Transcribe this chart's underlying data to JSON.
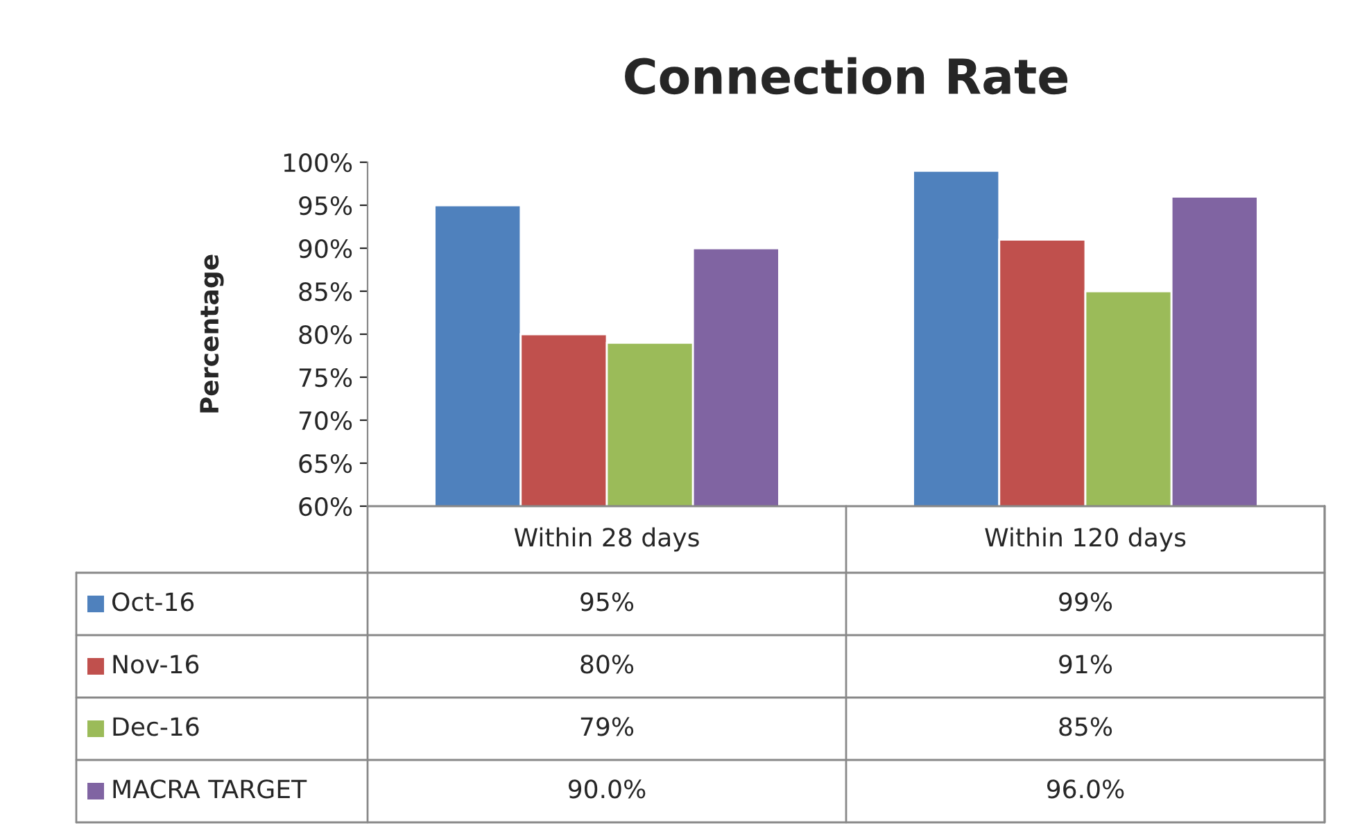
{
  "chart_data": {
    "type": "bar",
    "title": "Connection Rate",
    "ylabel": "Percentage",
    "categories": [
      "Within 28 days",
      "Within 120 days"
    ],
    "series": [
      {
        "name": "Oct-16",
        "color": "#4f81bd",
        "values": [
          95,
          99
        ],
        "value_labels": [
          "95%",
          "99%"
        ]
      },
      {
        "name": "Nov-16",
        "color": "#c0504d",
        "values": [
          80,
          91
        ],
        "value_labels": [
          "80%",
          "91%"
        ]
      },
      {
        "name": "Dec-16",
        "color": "#9bbb59",
        "values": [
          79,
          85
        ],
        "value_labels": [
          "79%",
          "85%"
        ]
      },
      {
        "name": "MACRA TARGET",
        "color": "#8064a2",
        "values": [
          90.0,
          96.0
        ],
        "value_labels": [
          "90.0%",
          "96.0%"
        ]
      }
    ],
    "ylim": [
      60,
      100
    ],
    "yticks": [
      {
        "value": 60,
        "label": "60%"
      },
      {
        "value": 65,
        "label": "65%"
      },
      {
        "value": 70,
        "label": "70%"
      },
      {
        "value": 75,
        "label": "75%"
      },
      {
        "value": 80,
        "label": "80%"
      },
      {
        "value": 85,
        "label": "85%"
      },
      {
        "value": 90,
        "label": "90%"
      },
      {
        "value": 95,
        "label": "95%"
      },
      {
        "value": 100,
        "label": "100%"
      }
    ],
    "legend": "bottom",
    "grid": false
  }
}
